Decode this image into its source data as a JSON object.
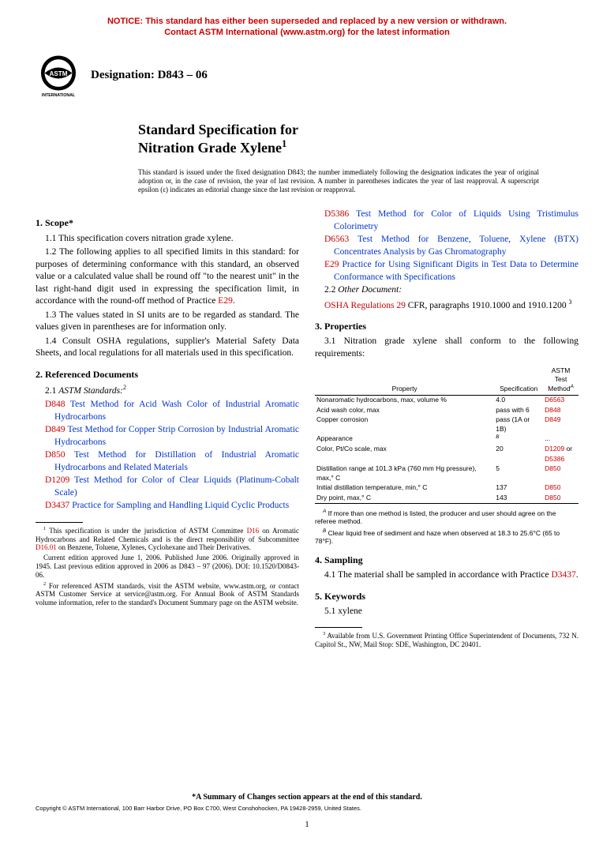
{
  "notice": {
    "line1": "NOTICE: This standard has either been superseded and replaced by a new version or withdrawn.",
    "line2": "Contact ASTM International (www.astm.org) for the latest information"
  },
  "designation": "Designation: D843 – 06",
  "title": {
    "line1": "Standard Specification for",
    "line2": "Nitration Grade Xylene"
  },
  "issuance": "This standard is issued under the fixed designation D843; the number immediately following the designation indicates the year of original adoption or, in the case of revision, the year of last revision. A number in parentheses indicates the year of last reapproval. A superscript epsilon (ε) indicates an editorial change since the last revision or reapproval.",
  "left": {
    "s1head": "1. Scope*",
    "p11": "1.1 This specification covers nitration grade xylene.",
    "p12a": "1.2 The following applies to all specified limits in this standard: for purposes of determining conformance with this standard, an observed value or a calculated value shall be round off \"to the nearest unit\" in the last right-hand digit used in expressing the specification limit, in accordance with the round-off method of Practice ",
    "p12link": "E29",
    "p12b": ".",
    "p13": "1.3 The values stated in SI units are to be regarded as standard. The values given in parentheses are for information only.",
    "p14": "1.4 Consult OSHA regulations, supplier's Material Safety Data Sheets, and local regulations for all materials used in this specification.",
    "s2head": "2. Referenced Documents",
    "s21": "2.1 ",
    "s21i": "ASTM Standards:",
    "refs": [
      {
        "code": "D848",
        "text": " Test Method for Acid Wash Color of Industrial Aromatic Hydrocarbons"
      },
      {
        "code": "D849",
        "text": " Test Method for Copper Strip Corrosion by Industrial Aromatic Hydrocarbons"
      },
      {
        "code": "D850",
        "text": " Test Method for Distillation of Industrial Aromatic Hydrocarbons and Related Materials"
      },
      {
        "code": "D1209",
        "text": " Test Method for Color of Clear Liquids (Platinum-Cobalt Scale)"
      },
      {
        "code": "D3437",
        "text": " Practice for Sampling and Handling Liquid Cyclic Products"
      }
    ],
    "fn1a": "This specification is under the jurisdiction of ASTM Committee ",
    "fn1l1": "D16",
    "fn1b": " on Aromatic Hydrocarbons and Related Chemicals and is the direct responsibility of Subcommittee ",
    "fn1l2": "D16.01",
    "fn1c": " on Benzene, Toluene, Xylenes, Cyclohexane and Their Derivatives.",
    "fn1d": "Current edition approved June 1, 2006. Published June 2006. Originally approved in 1945. Last previous edition approved in 2006 as D843 – 97 (2006). DOI: 10.1520/D0843-06.",
    "fn2": "For referenced ASTM standards, visit the ASTM website, www.astm.org, or contact ASTM Customer Service at service@astm.org. For Annual Book of ASTM Standards volume information, refer to the standard's Document Summary page on the ASTM website."
  },
  "right": {
    "refs2": [
      {
        "code": "D5386",
        "text": " Test Method for Color of Liquids Using Tristimulus Colorimetry"
      },
      {
        "code": "D6563",
        "text": " Test Method for Benzene, Toluene, Xylene (BTX) Concentrates Analysis by Gas Chromatography"
      },
      {
        "code": "E29",
        "text": " Practice for Using Significant Digits in Test Data to Determine Conformance with Specifications"
      }
    ],
    "s22": "2.2 ",
    "s22i": "Other Document:",
    "osha": "OSHA Regulations 29",
    "osha2": " CFR, paragraphs 1910.1000 and 1910.1200 ",
    "s3head": "3. Properties",
    "p31": "3.1 Nitration grade xylene shall conform to the following requirements:",
    "thead": {
      "c1": "Property",
      "c2": "Specification",
      "c3a": "ASTM Test",
      "c3b": "Method"
    },
    "rows": [
      {
        "p": "Nonaromatic hydrocarbons, max, volume %",
        "s": "4.0",
        "m": "D6563"
      },
      {
        "p": "Acid wash color, max",
        "s": "pass with 6",
        "m": "D848"
      },
      {
        "p": "Copper corrosion",
        "s": "pass (1A or 1B)",
        "m": "D849"
      },
      {
        "p": "Appearance",
        "s": "",
        "m": "..."
      },
      {
        "p": "Color, Pt/Co scale, max",
        "s": "20",
        "m": "D1209",
        "m2": "D5386",
        "or": " or"
      },
      {
        "p": "Distillation range at 101.3 kPa (760 mm Hg pressure), max,° C",
        "s": "5",
        "m": "D850"
      },
      {
        "p": "Initial distillation temperature, min,° C",
        "s": "137",
        "m": "D850"
      },
      {
        "p": "Dry point, max,° C",
        "s": "143",
        "m": "D850"
      }
    ],
    "noteA": " If more than one method is listed, the producer and user should agree on the referee method.",
    "noteB": " Clear liquid free of sediment and haze when observed at 18.3 to 25.6°C (65 to 78°F).",
    "s4head": "4. Sampling",
    "p41a": "4.1 The material shall be sampled in accordance with Practice ",
    "p41link": "D3437",
    "p41b": ".",
    "s5head": "5. Keywords",
    "p51": "5.1 xylene",
    "fn3": "Available from U.S. Government Printing Office Superintendent of Documents, 732 N. Capitol St., NW, Mail Stop: SDE, Washington, DC 20401."
  },
  "summary": "*A Summary of Changes section appears at the end of this standard.",
  "copyright": "Copyright © ASTM International, 100 Barr Harbor Drive, PO Box C700, West Conshohocken, PA 19428-2959, United States.",
  "pagenum": "1",
  "colors": {
    "link": "#0033cc",
    "red": "#cc0000"
  }
}
